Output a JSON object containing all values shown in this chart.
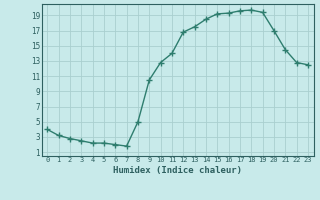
{
  "x": [
    0,
    1,
    2,
    3,
    4,
    5,
    6,
    7,
    8,
    9,
    10,
    11,
    12,
    13,
    14,
    15,
    16,
    17,
    18,
    19,
    20,
    21,
    22,
    23
  ],
  "y": [
    4.0,
    3.2,
    2.8,
    2.5,
    2.2,
    2.2,
    2.0,
    1.8,
    5.0,
    10.5,
    12.8,
    14.0,
    16.8,
    17.5,
    18.5,
    19.2,
    19.3,
    19.6,
    19.7,
    19.4,
    17.0,
    14.5,
    12.8,
    12.5
  ],
  "xlabel": "Humidex (Indice chaleur)",
  "line_color": "#2e7d6e",
  "bg_color": "#c8eaea",
  "grid_color": "#aacfcf",
  "text_color": "#2e6060",
  "xlim": [
    -0.5,
    23.5
  ],
  "ylim": [
    0.5,
    20.5
  ],
  "yticks": [
    1,
    3,
    5,
    7,
    9,
    11,
    13,
    15,
    17,
    19
  ],
  "xticks": [
    0,
    1,
    2,
    3,
    4,
    5,
    6,
    7,
    8,
    9,
    10,
    11,
    12,
    13,
    14,
    15,
    16,
    17,
    18,
    19,
    20,
    21,
    22,
    23
  ]
}
